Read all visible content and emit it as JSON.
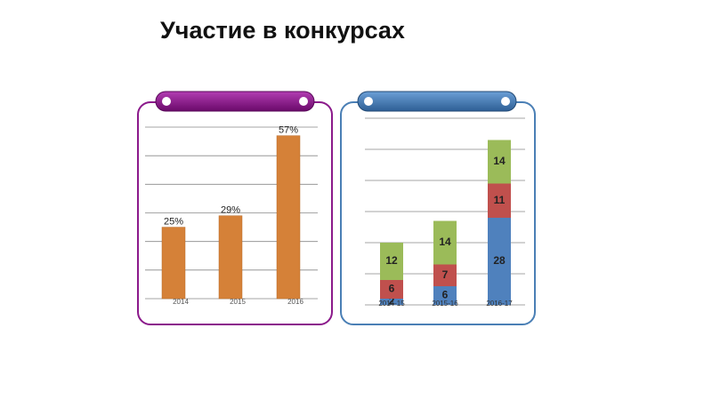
{
  "title": "Участие в конкурсах",
  "chart_data": [
    {
      "type": "bar",
      "categories": [
        "2014",
        "2015",
        "2016"
      ],
      "values": [
        25,
        29,
        57
      ],
      "value_labels": [
        "25%",
        "29%",
        "57%"
      ],
      "color": "#d58138",
      "ylim": [
        0,
        60
      ],
      "yticks": [
        0,
        10,
        20,
        30,
        40,
        50,
        60
      ],
      "grid": true
    },
    {
      "type": "stacked_bar",
      "categories": [
        "2014-15",
        "2015-16",
        "2016-17"
      ],
      "series": [
        {
          "color": "#4f81bd",
          "values": [
            2,
            6,
            28
          ]
        },
        {
          "color": "#c0504d",
          "values": [
            6,
            7,
            11
          ]
        },
        {
          "color": "#9bbb59",
          "values": [
            12,
            14,
            14
          ]
        }
      ],
      "ylim": [
        0,
        60
      ],
      "yticks": [
        0,
        10,
        20,
        30,
        40,
        50,
        60
      ],
      "grid": true
    }
  ]
}
